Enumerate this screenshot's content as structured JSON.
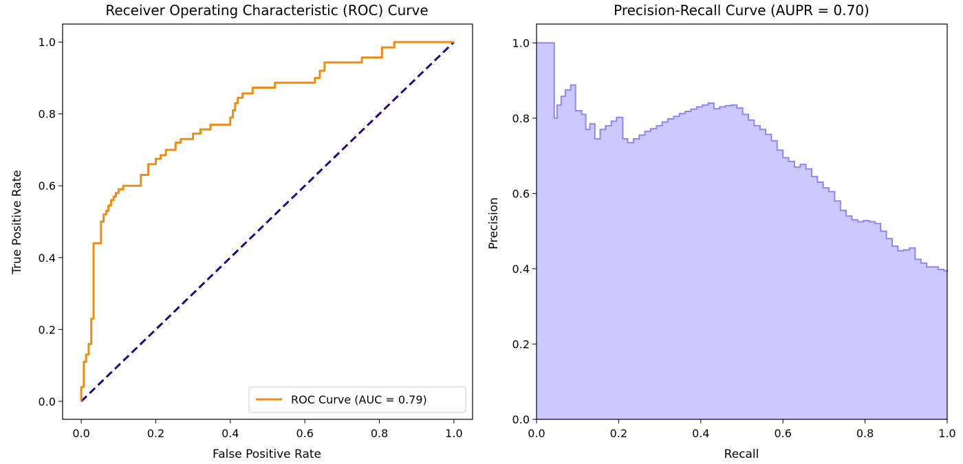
{
  "colors": {
    "roc_line": "#f28c10",
    "diagonal": "#1c0a8c",
    "pr_fill": "#ccc9ff",
    "pr_line": "#8f85f5",
    "axis": "#000000",
    "background": "#ffffff"
  },
  "chart_data": [
    {
      "type": "line",
      "title": "Receiver Operating Characteristic (ROC) Curve",
      "xlabel": "False Positive Rate",
      "ylabel": "True Positive Rate",
      "xlim": [
        -0.05,
        1.05
      ],
      "ylim": [
        -0.05,
        1.05
      ],
      "xticks": [
        "0.0",
        "0.2",
        "0.4",
        "0.6",
        "0.8",
        "1.0"
      ],
      "yticks": [
        "0.0",
        "0.2",
        "0.4",
        "0.6",
        "0.8",
        "1.0"
      ],
      "legend": {
        "label": "ROC Curve (AUC = 0.79)",
        "position": "lower right"
      },
      "series": [
        {
          "name": "ROC Curve (AUC = 0.79)",
          "style": "step",
          "x": [
            0.0,
            0.0,
            0.007,
            0.007,
            0.013,
            0.013,
            0.02,
            0.02,
            0.027,
            0.027,
            0.033,
            0.033,
            0.053,
            0.053,
            0.06,
            0.06,
            0.067,
            0.067,
            0.073,
            0.073,
            0.08,
            0.08,
            0.087,
            0.087,
            0.093,
            0.093,
            0.1,
            0.1,
            0.107,
            0.107,
            0.113,
            0.113,
            0.127,
            0.127,
            0.16,
            0.16,
            0.18,
            0.18,
            0.2,
            0.2,
            0.213,
            0.213,
            0.227,
            0.227,
            0.253,
            0.253,
            0.267,
            0.267,
            0.3,
            0.3,
            0.32,
            0.32,
            0.347,
            0.347,
            0.4,
            0.4,
            0.407,
            0.407,
            0.413,
            0.413,
            0.42,
            0.42,
            0.433,
            0.433,
            0.46,
            0.46,
            0.52,
            0.52,
            0.573,
            0.573,
            0.627,
            0.627,
            0.64,
            0.64,
            0.653,
            0.653,
            0.667,
            0.667,
            0.753,
            0.753,
            0.807,
            0.807,
            0.84,
            0.84,
            0.867,
            0.867,
            1.0
          ],
          "y": [
            0.0,
            0.04,
            0.04,
            0.11,
            0.11,
            0.13,
            0.13,
            0.16,
            0.16,
            0.23,
            0.23,
            0.44,
            0.44,
            0.5,
            0.5,
            0.52,
            0.52,
            0.53,
            0.53,
            0.545,
            0.545,
            0.56,
            0.56,
            0.57,
            0.57,
            0.58,
            0.58,
            0.59,
            0.59,
            0.59,
            0.59,
            0.6,
            0.6,
            0.6,
            0.6,
            0.63,
            0.63,
            0.66,
            0.66,
            0.675,
            0.675,
            0.685,
            0.685,
            0.7,
            0.7,
            0.72,
            0.72,
            0.73,
            0.73,
            0.745,
            0.745,
            0.757,
            0.757,
            0.77,
            0.77,
            0.79,
            0.79,
            0.81,
            0.81,
            0.83,
            0.83,
            0.845,
            0.845,
            0.857,
            0.857,
            0.873,
            0.873,
            0.887,
            0.887,
            0.887,
            0.887,
            0.9,
            0.9,
            0.92,
            0.92,
            0.943,
            0.943,
            0.943,
            0.943,
            0.957,
            0.957,
            0.985,
            0.985,
            1.0,
            1.0,
            1.0,
            1.0
          ]
        },
        {
          "name": "diagonal",
          "style": "dashed",
          "x": [
            0.0,
            1.0
          ],
          "y": [
            0.0,
            1.0
          ]
        }
      ]
    },
    {
      "type": "area",
      "title": "Precision-Recall Curve (AUPR = 0.70)",
      "xlabel": "Recall",
      "ylabel": "Precision",
      "xlim": [
        0.0,
        1.0
      ],
      "ylim": [
        0.0,
        1.05
      ],
      "xticks": [
        "0.0",
        "0.2",
        "0.4",
        "0.6",
        "0.8",
        "1.0"
      ],
      "yticks": [
        "0.0",
        "0.2",
        "0.4",
        "0.6",
        "0.8",
        "1.0"
      ],
      "series": [
        {
          "style": "step-post",
          "x": [
            0.0,
            0.043,
            0.05,
            0.06,
            0.07,
            0.083,
            0.095,
            0.11,
            0.12,
            0.13,
            0.142,
            0.155,
            0.168,
            0.182,
            0.195,
            0.21,
            0.222,
            0.236,
            0.25,
            0.264,
            0.278,
            0.292,
            0.306,
            0.32,
            0.334,
            0.348,
            0.362,
            0.376,
            0.39,
            0.404,
            0.418,
            0.432,
            0.446,
            0.46,
            0.474,
            0.488,
            0.502,
            0.516,
            0.53,
            0.544,
            0.558,
            0.572,
            0.586,
            0.6,
            0.614,
            0.628,
            0.642,
            0.656,
            0.67,
            0.684,
            0.698,
            0.712,
            0.726,
            0.74,
            0.754,
            0.768,
            0.782,
            0.796,
            0.81,
            0.824,
            0.838,
            0.852,
            0.866,
            0.88,
            0.894,
            0.908,
            0.922,
            0.936,
            0.95,
            0.964,
            0.978,
            0.992,
            1.0
          ],
          "y": [
            1.0,
            0.8,
            0.835,
            0.858,
            0.875,
            0.888,
            0.82,
            0.81,
            0.77,
            0.785,
            0.745,
            0.77,
            0.78,
            0.792,
            0.802,
            0.745,
            0.735,
            0.745,
            0.755,
            0.765,
            0.772,
            0.78,
            0.79,
            0.798,
            0.805,
            0.812,
            0.818,
            0.824,
            0.83,
            0.835,
            0.84,
            0.825,
            0.83,
            0.833,
            0.835,
            0.827,
            0.81,
            0.795,
            0.78,
            0.77,
            0.757,
            0.74,
            0.715,
            0.695,
            0.685,
            0.67,
            0.677,
            0.665,
            0.645,
            0.63,
            0.615,
            0.605,
            0.58,
            0.555,
            0.54,
            0.53,
            0.525,
            0.528,
            0.525,
            0.52,
            0.5,
            0.48,
            0.46,
            0.448,
            0.45,
            0.455,
            0.425,
            0.415,
            0.405,
            0.405,
            0.398,
            0.395,
            0.39
          ]
        }
      ]
    }
  ]
}
